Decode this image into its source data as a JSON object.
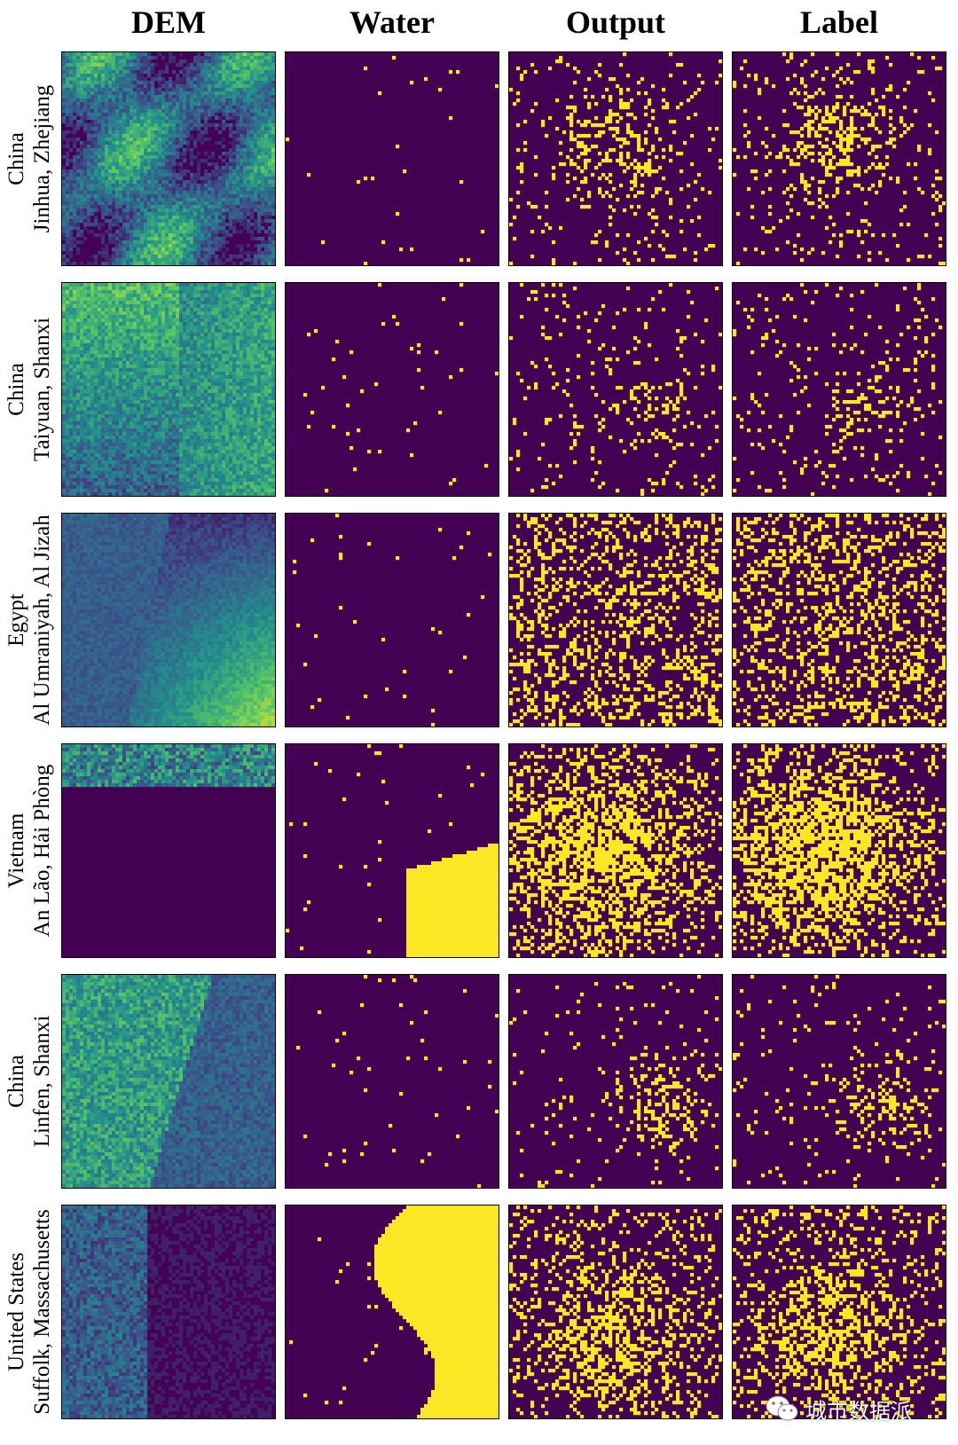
{
  "columns": [
    "DEM",
    "Water",
    "Output",
    "Label"
  ],
  "rows": [
    {
      "line1": "China",
      "line2": "Jinhua, Zhejiang"
    },
    {
      "line1": "China",
      "line2": "Taiyuan, Shanxi"
    },
    {
      "line1": "Egypt",
      "line2": "Al Umraniyah, Al Jizah"
    },
    {
      "line1": "Vietnam",
      "line2": "An Lão, Hải Phòng"
    },
    {
      "line1": "China",
      "line2": "Linfen, Shanxi"
    },
    {
      "line1": "United States",
      "line2": "Suffolk, Massachusetts"
    }
  ],
  "colors": {
    "background": "#440154",
    "highlight": "#fde725",
    "dem_low": "#440154",
    "dem_mid": "#21918c",
    "dem_high": "#fde725"
  },
  "watermark": {
    "text": "城市数据派",
    "icon": "wechat-icon"
  }
}
